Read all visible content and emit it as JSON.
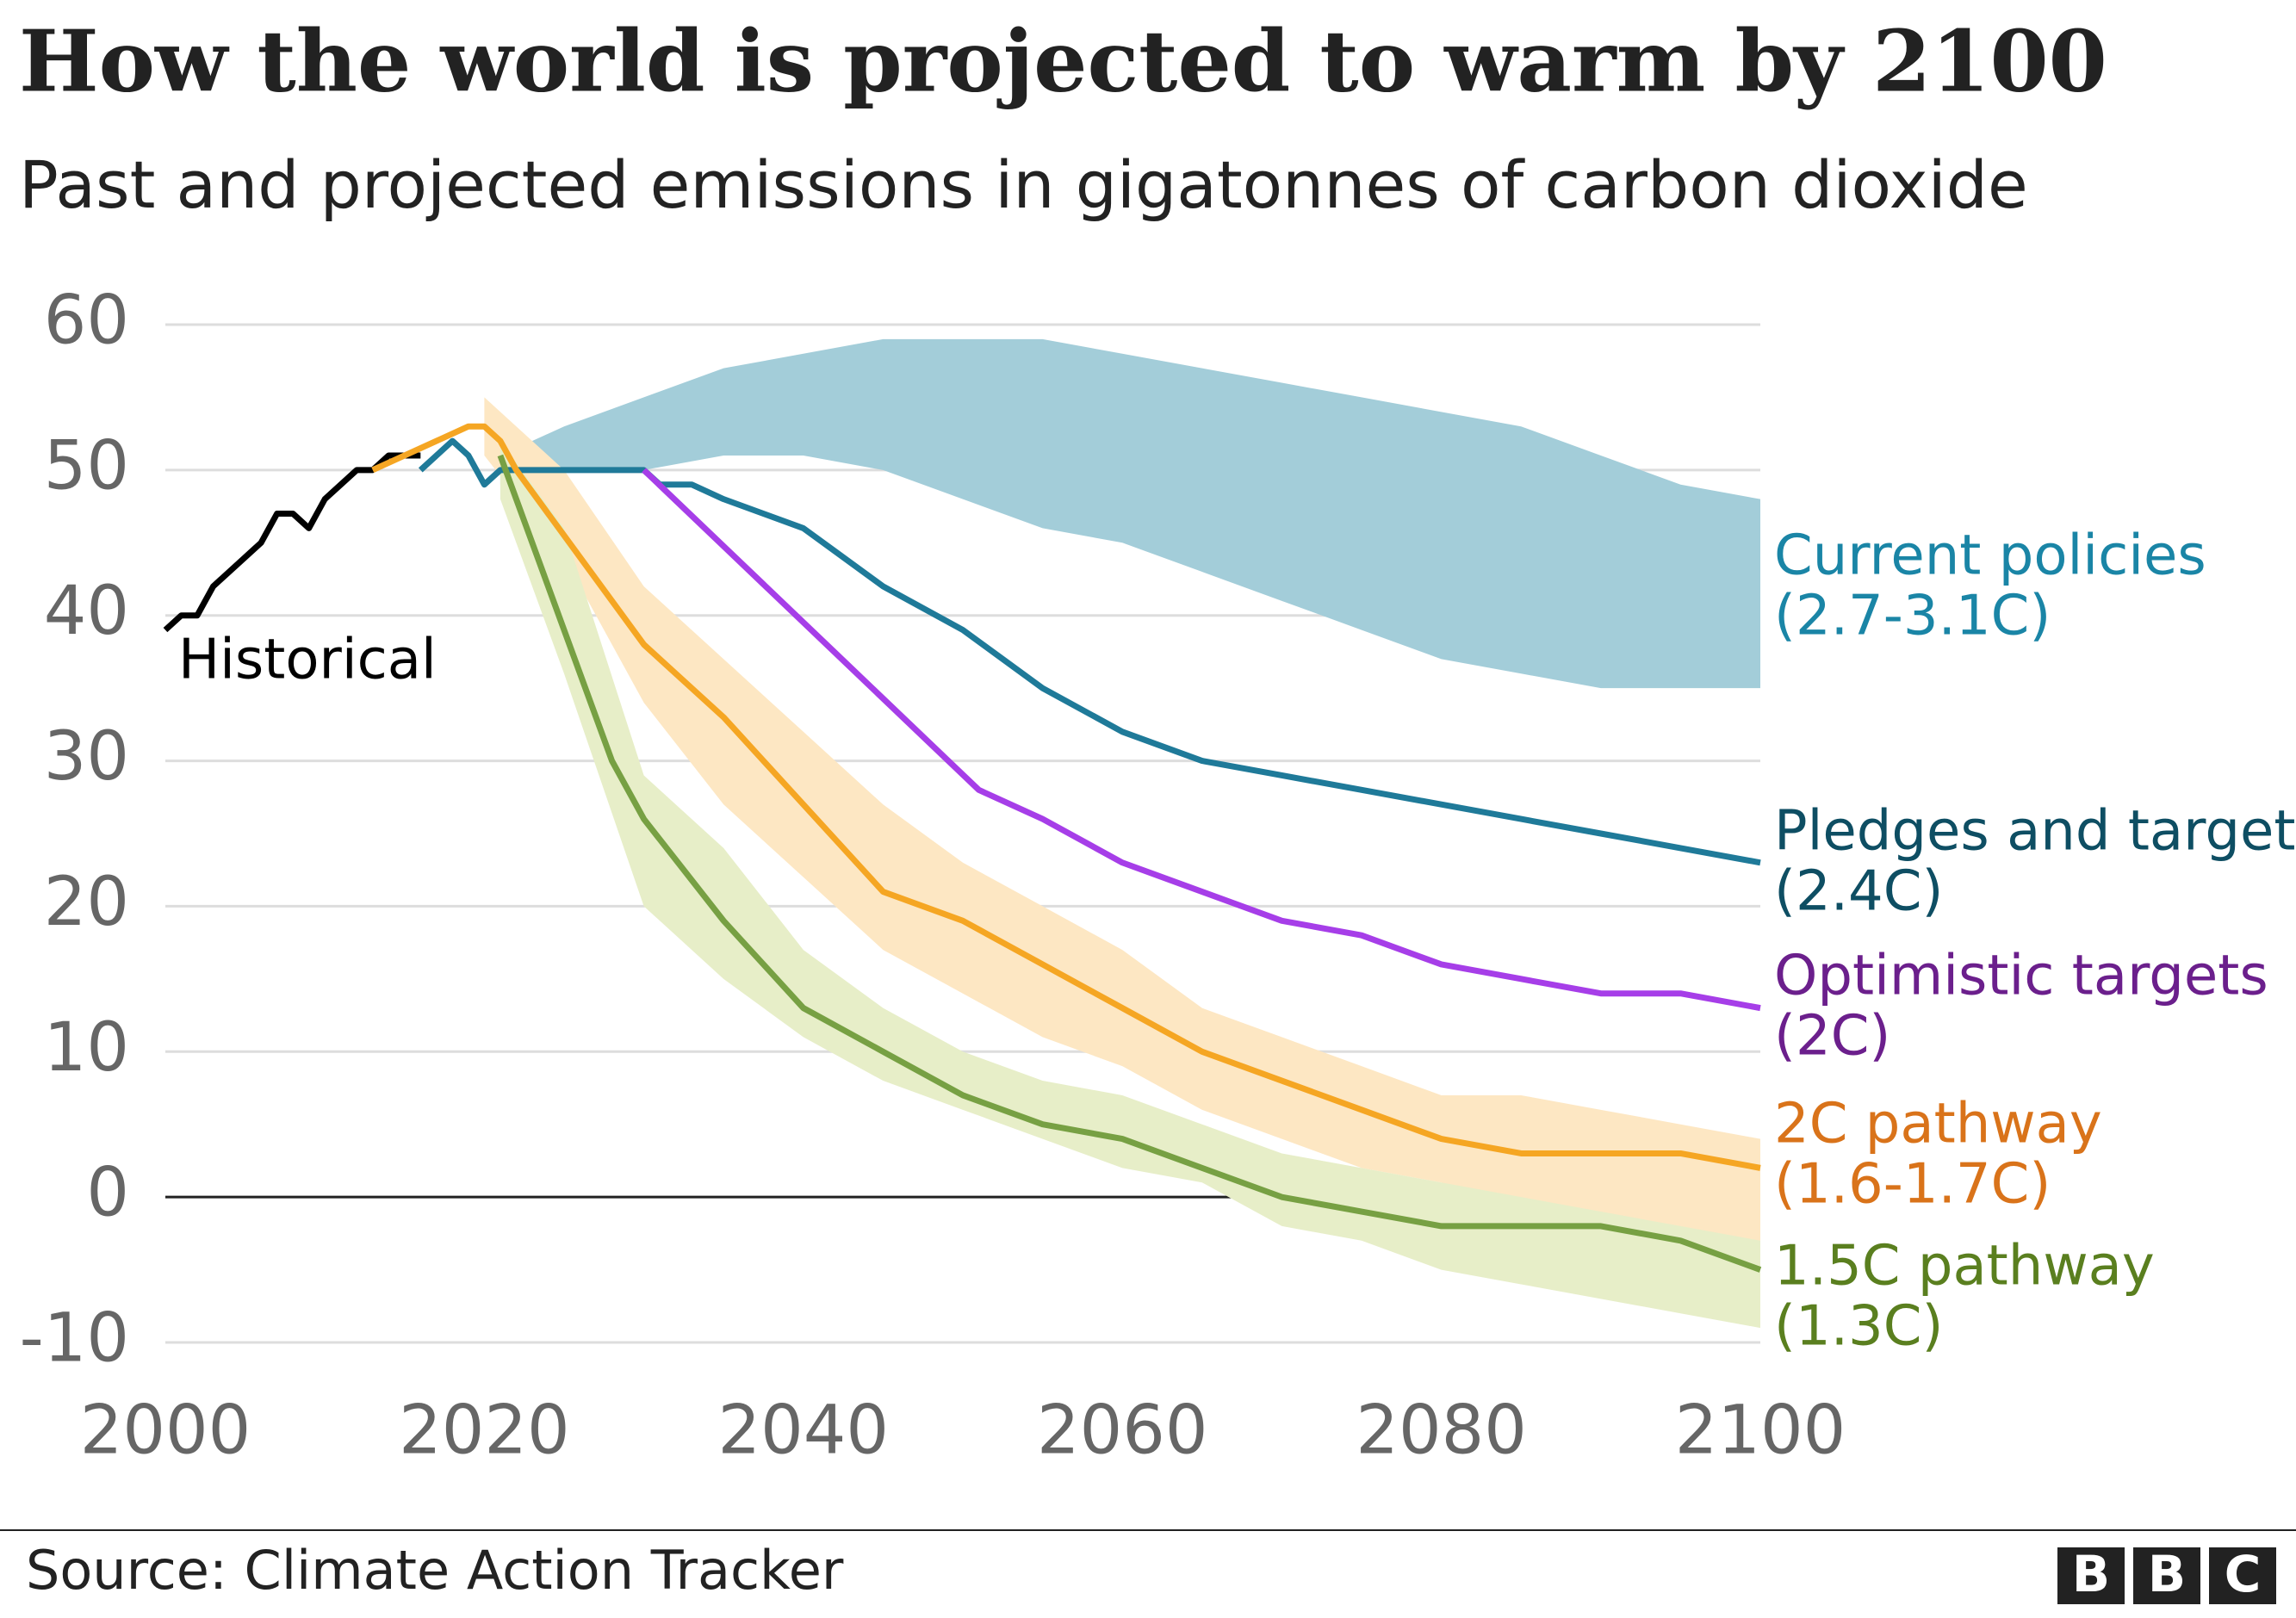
{
  "chart_data": {
    "type": "line",
    "title": "How the world is projected to warm by 2100",
    "subtitle": "Past and projected emissions in gigatonnes of carbon dioxide",
    "source": "Source: Climate Action Tracker",
    "logo": [
      "B",
      "B",
      "C"
    ],
    "xlim": [
      2000,
      2100
    ],
    "xticks": [
      2000,
      2020,
      2040,
      2060,
      2080,
      2100
    ],
    "ylim": [
      -10,
      60
    ],
    "yticks": [
      -10,
      0,
      10,
      20,
      30,
      40,
      50,
      60
    ],
    "grid": true,
    "series": [
      {
        "name": "Historical",
        "color": "#000000",
        "x": [
          2000,
          2001,
          2002,
          2003,
          2004,
          2005,
          2006,
          2007,
          2008,
          2009,
          2010,
          2011,
          2012,
          2013,
          2014,
          2015,
          2016
        ],
        "values": [
          39,
          40,
          40,
          42,
          43,
          44,
          45,
          47,
          47,
          46,
          48,
          49,
          50,
          50,
          51,
          51,
          51
        ]
      },
      {
        "name": "Current policies",
        "temperature": "(2.7-3.1C)",
        "label_color": "#1a85a6",
        "band": {
          "color": "#a3cdd9",
          "x": [
            2021,
            2025,
            2030,
            2035,
            2040,
            2045,
            2050,
            2055,
            2060,
            2065,
            2070,
            2075,
            2080,
            2085,
            2090,
            2095,
            2100
          ],
          "low": [
            49,
            50,
            50,
            51,
            51,
            50,
            48,
            46,
            45,
            43,
            41,
            39,
            37,
            36,
            35,
            35,
            35
          ],
          "high": [
            51,
            53,
            55,
            57,
            58,
            59,
            59,
            59,
            58,
            57,
            56,
            55,
            54,
            53,
            51,
            49,
            48
          ]
        }
      },
      {
        "name": "Pledges and targets",
        "temperature": "(2.4C)",
        "color": "#1f7a99",
        "label_color": "#0e4e63",
        "x": [
          2016,
          2018,
          2019,
          2020,
          2021,
          2030,
          2031,
          2033,
          2035,
          2040,
          2045,
          2050,
          2055,
          2060,
          2065,
          2070,
          2075,
          2080,
          2085,
          2090,
          2095,
          2100
        ],
        "values": [
          50,
          52,
          51,
          49,
          50,
          50,
          49,
          49,
          48,
          46,
          42,
          39,
          35,
          32,
          30,
          29,
          28,
          27,
          26,
          25,
          24,
          23
        ]
      },
      {
        "name": "Optimistic targets",
        "temperature": "(2C)",
        "color": "#a63ee8",
        "label_color": "#6b1f8c",
        "x": [
          2030,
          2051,
          2055,
          2060,
          2065,
          2070,
          2075,
          2080,
          2085,
          2090,
          2095,
          2100
        ],
        "values": [
          50,
          28,
          26,
          23,
          21,
          19,
          18,
          16,
          15,
          14,
          14,
          13
        ]
      },
      {
        "name": "2C pathway",
        "temperature": "(1.6-1.7C)",
        "color": "#f5a623",
        "label_color": "#d9731a",
        "x": [
          2013,
          2015,
          2017,
          2019,
          2020,
          2021,
          2022,
          2024,
          2026,
          2028,
          2030,
          2035,
          2040,
          2045,
          2050,
          2055,
          2060,
          2065,
          2070,
          2075,
          2080,
          2085,
          2090,
          2095,
          2100
        ],
        "values": [
          50,
          51,
          52,
          53,
          53,
          52,
          50,
          47,
          44,
          41,
          38,
          33,
          27,
          21,
          19,
          16,
          13,
          10,
          8,
          6,
          4,
          3,
          3,
          3,
          2
        ],
        "band": {
          "color": "#fde7c3",
          "x": [
            2020,
            2025,
            2030,
            2035,
            2040,
            2045,
            2050,
            2055,
            2060,
            2065,
            2070,
            2075,
            2080,
            2085,
            2090,
            2095,
            2100
          ],
          "low": [
            51,
            44,
            34,
            27,
            22,
            17,
            14,
            11,
            9,
            6,
            4,
            2,
            1,
            -1,
            -2,
            -3,
            -3
          ],
          "high": [
            55,
            50,
            42,
            37,
            32,
            27,
            23,
            20,
            17,
            13,
            11,
            9,
            7,
            7,
            6,
            5,
            4
          ]
        }
      },
      {
        "name": "1.5C pathway",
        "temperature": "(1.3C)",
        "color": "#77a043",
        "label_color": "#5a7f1f",
        "x": [
          2021,
          2022,
          2024,
          2026,
          2028,
          2030,
          2035,
          2040,
          2045,
          2050,
          2055,
          2060,
          2065,
          2070,
          2075,
          2080,
          2085,
          2090,
          2095,
          2100
        ],
        "values": [
          51,
          48,
          42,
          36,
          30,
          26,
          19,
          13,
          10,
          7,
          5,
          4,
          2,
          0,
          -1,
          -2,
          -2,
          -2,
          -3,
          -5
        ],
        "band": {
          "color": "#e7eec8",
          "x": [
            2021,
            2025,
            2030,
            2035,
            2040,
            2045,
            2050,
            2055,
            2060,
            2065,
            2070,
            2075,
            2080,
            2085,
            2090,
            2095,
            2100
          ],
          "low": [
            48,
            36,
            20,
            15,
            11,
            8,
            6,
            4,
            2,
            1,
            -2,
            -3,
            -5,
            -6,
            -7,
            -8,
            -9
          ],
          "high": [
            52,
            46,
            29,
            24,
            17,
            13,
            10,
            8,
            7,
            5,
            3,
            2,
            1,
            0,
            -1,
            -2,
            -3
          ]
        }
      }
    ]
  }
}
